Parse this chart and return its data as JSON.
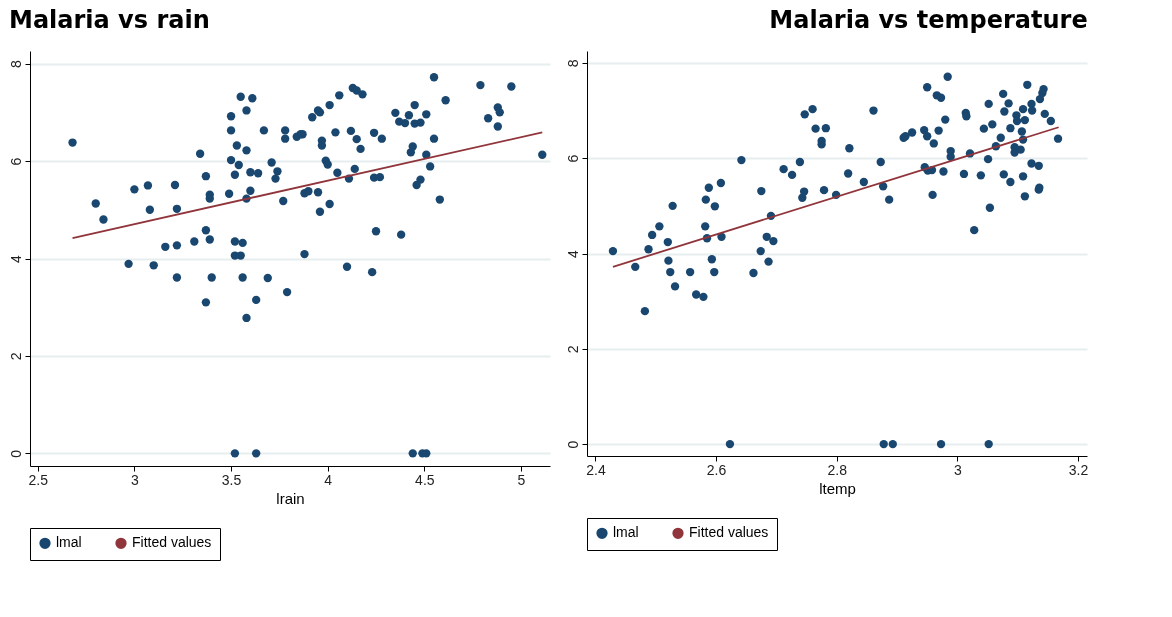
{
  "chart_data": [
    {
      "type": "scatter",
      "title": "Malaria vs rain",
      "xlabel": "lrain",
      "xlim": [
        2.46,
        5.15
      ],
      "ylim": [
        -0.26,
        8.26
      ],
      "xticks": [
        2.5,
        3,
        3.5,
        4,
        4.5,
        5
      ],
      "yticks": [
        0,
        2,
        4,
        6,
        8
      ],
      "grid": "y",
      "legend": "bottom",
      "series": [
        {
          "name": "lmal",
          "marker": "circle",
          "color": "#1a476f",
          "x": [
            2.68,
            2.8,
            2.84,
            2.97,
            3.0,
            3.07,
            3.08,
            3.1,
            3.16,
            3.21,
            3.22,
            3.22,
            3.22,
            3.31,
            3.34,
            3.37,
            3.37,
            3.37,
            3.39,
            3.39,
            3.39,
            3.4,
            3.49,
            3.5,
            3.5,
            3.5,
            3.52,
            3.52,
            3.52,
            3.52,
            3.53,
            3.54,
            3.55,
            3.55,
            3.56,
            3.56,
            3.58,
            3.58,
            3.58,
            3.58,
            3.6,
            3.6,
            3.61,
            3.63,
            3.63,
            3.64,
            3.67,
            3.69,
            3.71,
            3.73,
            3.74,
            3.77,
            3.78,
            3.78,
            3.79,
            3.84,
            3.86,
            3.87,
            3.88,
            3.88,
            3.9,
            3.92,
            3.95,
            3.96,
            3.95,
            3.96,
            3.97,
            3.97,
            3.99,
            4.0,
            4.01,
            4.01,
            4.04,
            4.05,
            4.06,
            4.1,
            4.11,
            4.12,
            4.13,
            4.14,
            4.15,
            4.15,
            4.17,
            4.18,
            4.23,
            4.24,
            4.24,
            4.25,
            4.27,
            4.28,
            4.35,
            4.37,
            4.38,
            4.4,
            4.42,
            4.43,
            4.44,
            4.44,
            4.45,
            4.45,
            4.46,
            4.48,
            4.49,
            4.48,
            4.51,
            4.51,
            4.51,
            4.53,
            4.55,
            4.55,
            4.58,
            4.61,
            4.79,
            4.83,
            4.88,
            4.89,
            4.88,
            4.95,
            5.11
          ],
          "values": [
            6.38,
            5.13,
            4.8,
            3.89,
            5.42,
            5.5,
            5.0,
            3.86,
            4.24,
            5.51,
            5.02,
            4.27,
            3.61,
            4.35,
            6.15,
            4.58,
            3.1,
            5.69,
            5.31,
            5.23,
            4.39,
            3.61,
            5.33,
            6.63,
            6.92,
            6.02,
            5.72,
            4.35,
            4.06,
            0,
            6.32,
            5.92,
            7.32,
            4.06,
            4.32,
            3.61,
            6.22,
            7.04,
            2.78,
            5.23,
            5.39,
            5.77,
            7.29,
            3.15,
            0,
            5.75,
            6.63,
            3.6,
            5.97,
            5.64,
            5.79,
            5.18,
            6.63,
            6.46,
            3.31,
            6.5,
            6.55,
            6.55,
            4.09,
            5.34,
            5.38,
            6.9,
            7.04,
            7.0,
            5.36,
            4.96,
            6.42,
            6.32,
            6.01,
            5.93,
            5.12,
            7.15,
            6.59,
            5.76,
            7.35,
            3.83,
            5.64,
            6.62,
            7.5,
            5.84,
            6.45,
            7.45,
            6.25,
            7.37,
            3.72,
            6.58,
            5.66,
            4.56,
            5.67,
            6.46,
            6.99,
            6.81,
            4.49,
            6.78,
            6.94,
            6.18,
            6.3,
            0,
            7.15,
            6.77,
            5.51,
            5.62,
            0,
            6.79,
            0,
            6.13,
            6.96,
            5.89,
            7.72,
            6.46,
            5.21,
            7.25,
            7.56,
            6.88,
            7.1,
            7.0,
            6.71,
            7.53,
            6.13
          ]
        },
        {
          "name": "Fitted values",
          "type": "line",
          "line_style": "solid",
          "color": "#90353b",
          "x": [
            2.68,
            5.11
          ],
          "values": [
            4.42,
            6.59
          ]
        }
      ]
    },
    {
      "type": "scatter",
      "title": "Malaria vs temperature",
      "xlabel": "ltemp",
      "xlim": [
        2.386,
        3.215
      ],
      "ylim": [
        -0.25,
        8.25
      ],
      "xticks": [
        2.4,
        2.6,
        2.8,
        3,
        3.2
      ],
      "yticks": [
        0,
        2,
        4,
        6,
        8
      ],
      "grid": "y",
      "legend": "bottom",
      "series": [
        {
          "name": "lmal",
          "marker": "circle",
          "color": "#1a476f",
          "x": [
            2.429,
            2.466,
            2.482,
            2.488,
            2.494,
            2.506,
            2.52,
            2.521,
            2.524,
            2.528,
            2.532,
            2.557,
            2.567,
            2.579,
            2.582,
            2.583,
            2.585,
            2.588,
            2.593,
            2.597,
            2.598,
            2.609,
            2.608,
            2.623,
            2.642,
            2.662,
            2.674,
            2.675,
            2.684,
            2.687,
            2.691,
            2.695,
            2.712,
            2.726,
            2.739,
            2.743,
            2.746,
            2.747,
            2.76,
            2.765,
            2.775,
            2.775,
            2.782,
            2.779,
            2.799,
            2.819,
            2.821,
            2.845,
            2.861,
            2.873,
            2.877,
            2.887,
            2.878,
            2.893,
            2.911,
            2.914,
            2.925,
            2.945,
            2.95,
            2.95,
            2.946,
            2.951,
            2.958,
            2.959,
            2.961,
            2.966,
            2.973,
            2.969,
            2.973,
            2.977,
            2.98,
            2.984,
            2.989,
            2.989,
            3.011,
            3.014,
            3.015,
            3.021,
            3.028,
            3.039,
            3.044,
            3.051,
            3.052,
            3.052,
            3.054,
            3.058,
            3.064,
            3.072,
            3.076,
            3.077,
            3.078,
            3.085,
            3.088,
            3.088,
            3.095,
            3.095,
            3.098,
            3.099,
            3.105,
            3.107,
            3.109,
            3.109,
            3.112,
            3.109,
            3.112,
            3.116,
            3.123,
            3.124,
            3.123,
            3.135,
            3.136,
            3.135,
            3.137,
            3.141,
            3.143,
            3.145,
            3.155,
            3.167
          ],
          "values": [
            4.05,
            3.72,
            2.79,
            4.09,
            4.39,
            4.57,
            4.24,
            3.85,
            3.61,
            5.0,
            3.31,
            3.61,
            3.14,
            3.09,
            4.57,
            5.13,
            4.32,
            5.38,
            3.88,
            3.61,
            4.99,
            4.35,
            5.48,
            0,
            5.96,
            3.59,
            4.05,
            5.31,
            4.35,
            3.83,
            4.79,
            4.26,
            5.77,
            5.65,
            5.92,
            5.17,
            5.3,
            6.92,
            7.03,
            6.62,
            6.36,
            6.29,
            6.63,
            5.33,
            5.23,
            5.68,
            6.21,
            5.5,
            7.0,
            5.92,
            5.41,
            5.13,
            0,
            0,
            6.43,
            6.46,
            6.54,
            6.59,
            7.49,
            6.46,
            5.81,
            5.74,
            5.75,
            5.23,
            6.31,
            7.32,
            7.27,
            6.58,
            0,
            5.72,
            6.81,
            7.71,
            6.15,
            6.03,
            5.67,
            6.95,
            6.88,
            6.1,
            4.49,
            5.64,
            6.62,
            5.98,
            0,
            7.14,
            4.96,
            6.71,
            6.25,
            6.43,
            7.35,
            5.66,
            6.98,
            7.15,
            5.5,
            6.63,
            6.23,
            6.12,
            6.9,
            6.78,
            6.18,
            6.56,
            6.39,
            5.62,
            5.2,
            7.03,
            6.8,
            7.54,
            7.14,
            7.0,
            5.89,
            5.84,
            5.38,
            5.34,
            7.24,
            7.37,
            7.45,
            6.93,
            6.78,
            6.41
          ]
        },
        {
          "name": "Fitted values",
          "type": "line",
          "line_style": "solid",
          "color": "#90353b",
          "x": [
            2.429,
            3.168
          ],
          "values": [
            3.72,
            6.65
          ]
        }
      ]
    }
  ]
}
